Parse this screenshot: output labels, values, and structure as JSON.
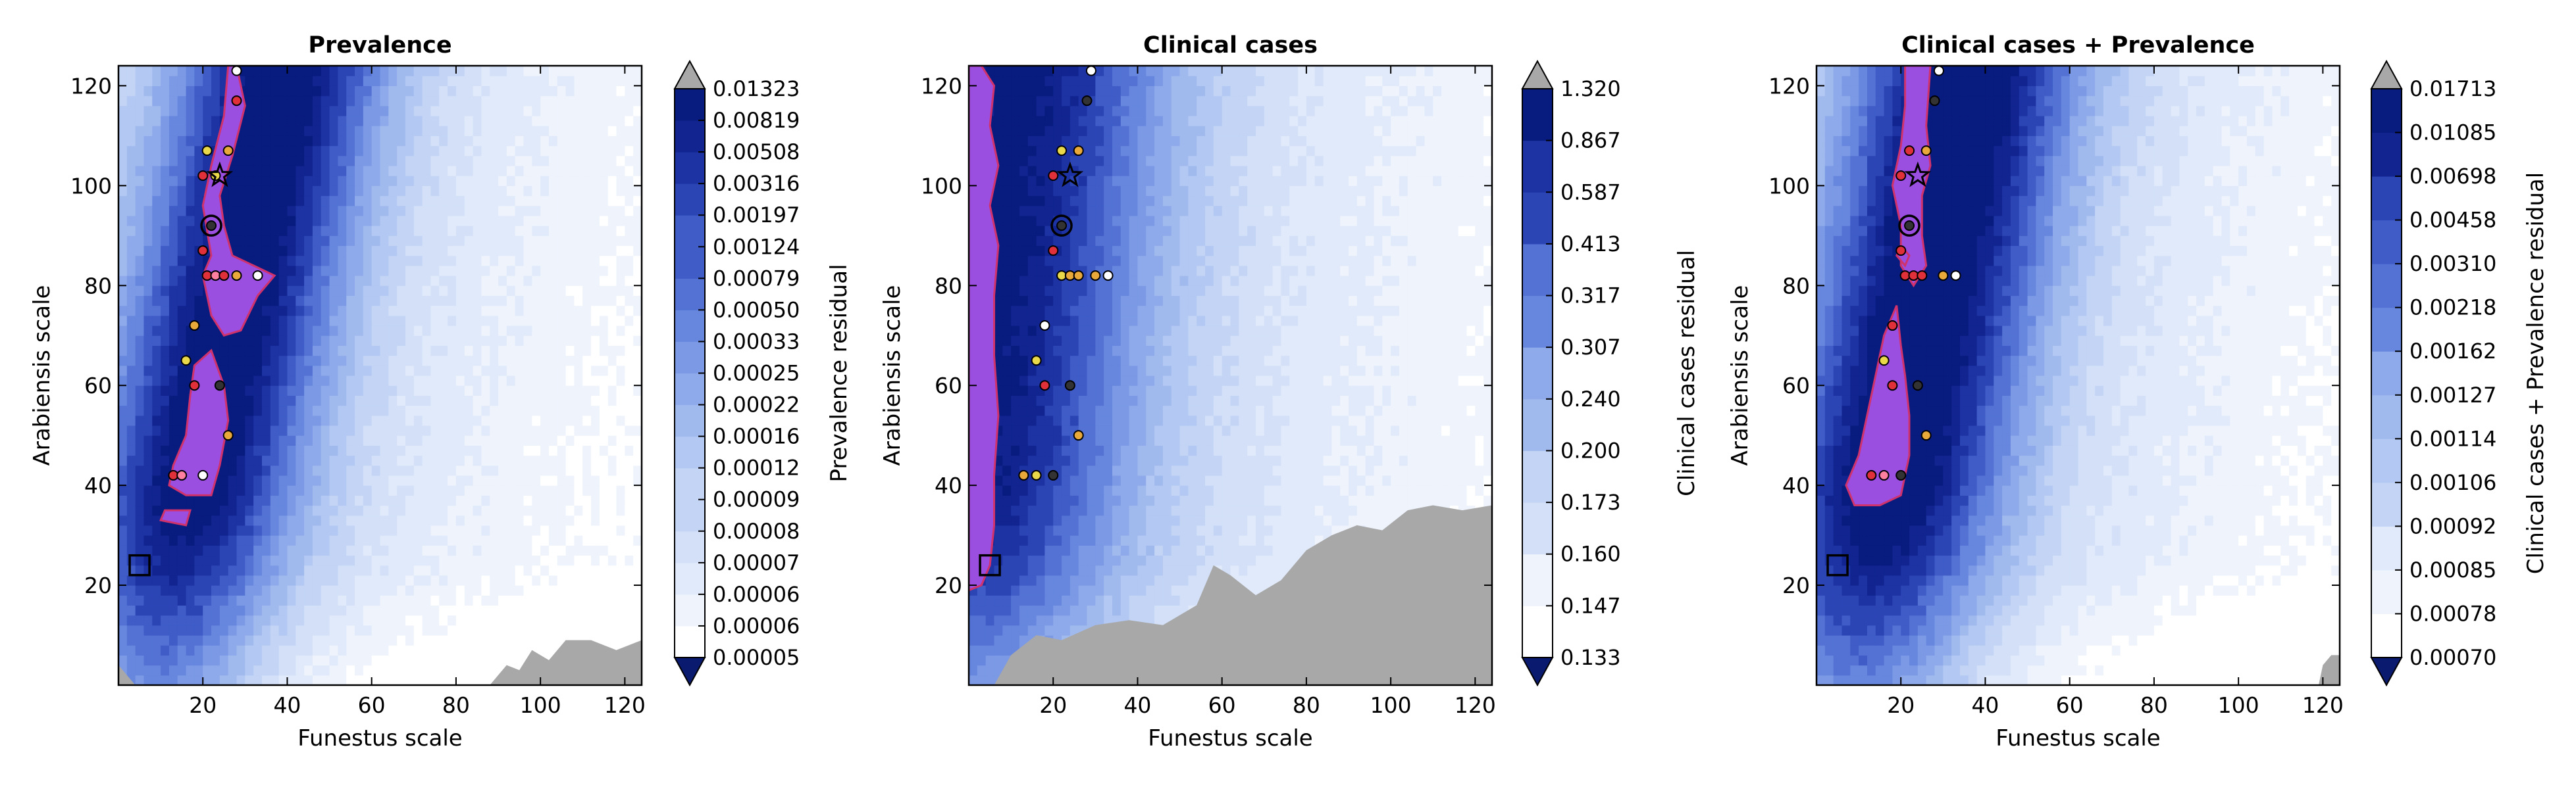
{
  "palette": {
    "level_colors": [
      "#ffffff",
      "#eef3fc",
      "#e1eafa",
      "#d3e0f8",
      "#c3d4f5",
      "#b3c8f2",
      "#a1baee",
      "#8faaea",
      "#7b99e5",
      "#6787de",
      "#5372d4",
      "#3f5cc7",
      "#2c45b5",
      "#1d33a3",
      "#112490",
      "#081b7e"
    ],
    "over_color": "#a8a8a8",
    "under_color": "#0a1a6e",
    "quantile_fill": "#9a4fe0",
    "quantile_edge": "#d0326b",
    "marker_colors": {
      "pink": "#ff7fa0",
      "red": "#e0303a",
      "yellow": "#e8d84a",
      "orange": "#e8a83a",
      "white": "#ffffff",
      "dark": "#333333"
    }
  },
  "chart_data": [
    {
      "type": "filled-contour",
      "title": "Prevalence",
      "xlabel": "Funestus scale",
      "ylabel": "Arabiensis scale",
      "xlim": [
        0,
        124
      ],
      "ylim": [
        0,
        124
      ],
      "xticks": [
        "20",
        "40",
        "60",
        "80",
        "100",
        "120"
      ],
      "yticks": [
        "20",
        "40",
        "60",
        "80",
        "100",
        "120"
      ],
      "colorbar_label": "Prevalence residual",
      "colorbar_ticks": [
        "0.00005",
        "0.00006",
        "0.00006",
        "0.00007",
        "0.00008",
        "0.00009",
        "0.00012",
        "0.00016",
        "0.00022",
        "0.00025",
        "0.00033",
        "0.00050",
        "0.00079",
        "0.00124",
        "0.00197",
        "0.00316",
        "0.00508",
        "0.00819",
        "0.01323"
      ],
      "valley": {
        "x0": 23,
        "slope": 0.25,
        "width": 24,
        "depth": 1.0
      },
      "quantile_region": [
        {
          "x": 28,
          "y": 124
        },
        {
          "x": 30,
          "y": 116
        },
        {
          "x": 27,
          "y": 106
        },
        {
          "x": 24,
          "y": 98
        },
        {
          "x": 25,
          "y": 92
        },
        {
          "x": 27,
          "y": 86
        },
        {
          "x": 32,
          "y": 84
        },
        {
          "x": 37,
          "y": 82
        },
        {
          "x": 33,
          "y": 78
        },
        {
          "x": 29,
          "y": 71
        },
        {
          "x": 25,
          "y": 70
        },
        {
          "x": 22,
          "y": 74
        },
        {
          "x": 20,
          "y": 82
        },
        {
          "x": 22,
          "y": 86
        },
        {
          "x": 20,
          "y": 96
        },
        {
          "x": 22,
          "y": 104
        },
        {
          "x": 25,
          "y": 114
        },
        {
          "x": 26,
          "y": 124
        }
      ],
      "quantile_region_2": [
        {
          "x": 22,
          "y": 67
        },
        {
          "x": 25,
          "y": 60
        },
        {
          "x": 26,
          "y": 53
        },
        {
          "x": 24,
          "y": 44
        },
        {
          "x": 22,
          "y": 38
        },
        {
          "x": 16,
          "y": 38
        },
        {
          "x": 12,
          "y": 40
        },
        {
          "x": 13,
          "y": 44
        },
        {
          "x": 16,
          "y": 50
        },
        {
          "x": 17,
          "y": 58
        },
        {
          "x": 18,
          "y": 64
        }
      ],
      "quantile_region_3": [
        {
          "x": 10,
          "y": 33
        },
        {
          "x": 16,
          "y": 32
        },
        {
          "x": 17,
          "y": 35
        },
        {
          "x": 11,
          "y": 35
        }
      ],
      "gray_region": [
        {
          "x": 88,
          "y": 0
        },
        {
          "x": 92,
          "y": 4
        },
        {
          "x": 95,
          "y": 3
        },
        {
          "x": 98,
          "y": 7
        },
        {
          "x": 102,
          "y": 5
        },
        {
          "x": 106,
          "y": 9
        },
        {
          "x": 112,
          "y": 9
        },
        {
          "x": 118,
          "y": 7
        },
        {
          "x": 124,
          "y": 9
        },
        {
          "x": 124,
          "y": 0
        }
      ],
      "gray_corner": [
        {
          "x": 0,
          "y": 0
        },
        {
          "x": 0,
          "y": 4
        },
        {
          "x": 4,
          "y": 0
        }
      ],
      "markers": [
        {
          "x": 28,
          "y": 123,
          "color": "white"
        },
        {
          "x": 28,
          "y": 117,
          "color": "red"
        },
        {
          "x": 21,
          "y": 107,
          "color": "yellow"
        },
        {
          "x": 26,
          "y": 107,
          "color": "orange"
        },
        {
          "x": 20,
          "y": 102,
          "color": "red"
        },
        {
          "x": 23,
          "y": 102,
          "color": "yellow"
        },
        {
          "x": 20,
          "y": 87,
          "color": "red"
        },
        {
          "x": 21,
          "y": 82,
          "color": "red"
        },
        {
          "x": 23,
          "y": 82,
          "color": "pink"
        },
        {
          "x": 25,
          "y": 82,
          "color": "red"
        },
        {
          "x": 28,
          "y": 82,
          "color": "orange"
        },
        {
          "x": 33,
          "y": 82,
          "color": "white"
        },
        {
          "x": 18,
          "y": 72,
          "color": "orange"
        },
        {
          "x": 16,
          "y": 65,
          "color": "yellow"
        },
        {
          "x": 18,
          "y": 60,
          "color": "red"
        },
        {
          "x": 24,
          "y": 60,
          "color": "dark"
        },
        {
          "x": 26,
          "y": 50,
          "color": "orange"
        },
        {
          "x": 13,
          "y": 42,
          "color": "red"
        },
        {
          "x": 15,
          "y": 42,
          "color": "pink"
        },
        {
          "x": 20,
          "y": 42,
          "color": "white"
        }
      ],
      "star": {
        "x": 24,
        "y": 102
      },
      "circle": {
        "x": 22,
        "y": 92
      },
      "square": {
        "x": 5,
        "y": 24
      }
    },
    {
      "type": "filled-contour",
      "title": "Clinical cases",
      "xlabel": "Funestus scale",
      "ylabel": "Arabiensis scale",
      "xlim": [
        0,
        124
      ],
      "ylim": [
        0,
        124
      ],
      "xticks": [
        "20",
        "40",
        "60",
        "80",
        "100",
        "120"
      ],
      "yticks": [
        "20",
        "40",
        "60",
        "80",
        "100",
        "120"
      ],
      "colorbar_label": "Clinical cases residual",
      "colorbar_ticks": [
        "0.133",
        "0.147",
        "0.160",
        "0.173",
        "0.200",
        "0.240",
        "0.307",
        "0.317",
        "0.413",
        "0.587",
        "0.867",
        "1.320"
      ],
      "valley": {
        "x0": 4,
        "slope": 0.12,
        "width": 34,
        "depth": 0.9
      },
      "quantile_region": [
        {
          "x": 3,
          "y": 124
        },
        {
          "x": 6,
          "y": 120
        },
        {
          "x": 5,
          "y": 112
        },
        {
          "x": 7,
          "y": 104
        },
        {
          "x": 5,
          "y": 96
        },
        {
          "x": 7,
          "y": 88
        },
        {
          "x": 6,
          "y": 78
        },
        {
          "x": 6,
          "y": 66
        },
        {
          "x": 7,
          "y": 54
        },
        {
          "x": 6,
          "y": 42
        },
        {
          "x": 6,
          "y": 32
        },
        {
          "x": 5,
          "y": 24
        },
        {
          "x": 3,
          "y": 20
        },
        {
          "x": 0,
          "y": 19
        },
        {
          "x": 0,
          "y": 124
        }
      ],
      "quantile_region_2": [],
      "quantile_region_3": [],
      "gray_region": [
        {
          "x": 6,
          "y": 0
        },
        {
          "x": 10,
          "y": 6
        },
        {
          "x": 16,
          "y": 10
        },
        {
          "x": 22,
          "y": 9
        },
        {
          "x": 30,
          "y": 12
        },
        {
          "x": 38,
          "y": 13
        },
        {
          "x": 46,
          "y": 12
        },
        {
          "x": 54,
          "y": 16
        },
        {
          "x": 58,
          "y": 24
        },
        {
          "x": 62,
          "y": 22
        },
        {
          "x": 68,
          "y": 18
        },
        {
          "x": 74,
          "y": 21
        },
        {
          "x": 80,
          "y": 27
        },
        {
          "x": 86,
          "y": 30
        },
        {
          "x": 92,
          "y": 32
        },
        {
          "x": 98,
          "y": 31
        },
        {
          "x": 104,
          "y": 35
        },
        {
          "x": 110,
          "y": 36
        },
        {
          "x": 117,
          "y": 35
        },
        {
          "x": 124,
          "y": 36
        },
        {
          "x": 124,
          "y": 0
        }
      ],
      "gray_corner": [],
      "markers": [
        {
          "x": 29,
          "y": 123,
          "color": "white"
        },
        {
          "x": 28,
          "y": 117,
          "color": "dark"
        },
        {
          "x": 22,
          "y": 107,
          "color": "yellow"
        },
        {
          "x": 26,
          "y": 107,
          "color": "orange"
        },
        {
          "x": 20,
          "y": 102,
          "color": "red"
        },
        {
          "x": 20,
          "y": 87,
          "color": "red"
        },
        {
          "x": 22,
          "y": 82,
          "color": "yellow"
        },
        {
          "x": 24,
          "y": 82,
          "color": "orange"
        },
        {
          "x": 26,
          "y": 82,
          "color": "orange"
        },
        {
          "x": 30,
          "y": 82,
          "color": "orange"
        },
        {
          "x": 33,
          "y": 82,
          "color": "white"
        },
        {
          "x": 18,
          "y": 72,
          "color": "white"
        },
        {
          "x": 16,
          "y": 65,
          "color": "yellow"
        },
        {
          "x": 18,
          "y": 60,
          "color": "red"
        },
        {
          "x": 24,
          "y": 60,
          "color": "dark"
        },
        {
          "x": 26,
          "y": 50,
          "color": "orange"
        },
        {
          "x": 13,
          "y": 42,
          "color": "orange"
        },
        {
          "x": 16,
          "y": 42,
          "color": "yellow"
        },
        {
          "x": 20,
          "y": 42,
          "color": "dark"
        }
      ],
      "star": {
        "x": 24,
        "y": 102
      },
      "circle": {
        "x": 22,
        "y": 92
      },
      "square": {
        "x": 5,
        "y": 24
      }
    },
    {
      "type": "filled-contour",
      "title": "Clinical cases + Prevalence",
      "xlabel": "Funestus scale",
      "ylabel": "Arabiensis scale",
      "xlim": [
        0,
        124
      ],
      "ylim": [
        0,
        124
      ],
      "xticks": [
        "20",
        "40",
        "60",
        "80",
        "100",
        "120"
      ],
      "yticks": [
        "20",
        "40",
        "60",
        "80",
        "100",
        "120"
      ],
      "colorbar_label": "Clinical cases + Prevalence residual",
      "colorbar_ticks": [
        "0.00070",
        "0.00078",
        "0.00085",
        "0.00092",
        "0.00106",
        "0.00114",
        "0.00127",
        "0.00162",
        "0.00218",
        "0.00310",
        "0.00458",
        "0.00698",
        "0.01085",
        "0.01713"
      ],
      "valley": {
        "x0": 22,
        "slope": 0.22,
        "width": 26,
        "depth": 1.05
      },
      "quantile_region": [
        {
          "x": 21,
          "y": 124
        },
        {
          "x": 27,
          "y": 124
        },
        {
          "x": 26,
          "y": 112
        },
        {
          "x": 27,
          "y": 104
        },
        {
          "x": 25,
          "y": 98
        },
        {
          "x": 25,
          "y": 90
        },
        {
          "x": 26,
          "y": 84
        },
        {
          "x": 23,
          "y": 80
        },
        {
          "x": 20,
          "y": 84
        },
        {
          "x": 20,
          "y": 92
        },
        {
          "x": 18,
          "y": 100
        },
        {
          "x": 20,
          "y": 108
        },
        {
          "x": 21,
          "y": 116
        }
      ],
      "quantile_region_2": [
        {
          "x": 19,
          "y": 76
        },
        {
          "x": 20,
          "y": 68
        },
        {
          "x": 21,
          "y": 62
        },
        {
          "x": 22,
          "y": 54
        },
        {
          "x": 22,
          "y": 46
        },
        {
          "x": 20,
          "y": 38
        },
        {
          "x": 15,
          "y": 36
        },
        {
          "x": 9,
          "y": 36
        },
        {
          "x": 7,
          "y": 40
        },
        {
          "x": 10,
          "y": 46
        },
        {
          "x": 12,
          "y": 54
        },
        {
          "x": 14,
          "y": 62
        },
        {
          "x": 16,
          "y": 70
        }
      ],
      "quantile_region_3": [
        {
          "x": 20,
          "y": 88
        },
        {
          "x": 22,
          "y": 86
        },
        {
          "x": 21,
          "y": 84
        },
        {
          "x": 19,
          "y": 86
        }
      ],
      "gray_region": [
        {
          "x": 119,
          "y": 0
        },
        {
          "x": 120,
          "y": 4
        },
        {
          "x": 122,
          "y": 6
        },
        {
          "x": 124,
          "y": 6
        },
        {
          "x": 124,
          "y": 0
        }
      ],
      "gray_corner": [],
      "markers": [
        {
          "x": 29,
          "y": 123,
          "color": "white"
        },
        {
          "x": 28,
          "y": 117,
          "color": "dark"
        },
        {
          "x": 22,
          "y": 107,
          "color": "red"
        },
        {
          "x": 26,
          "y": 107,
          "color": "orange"
        },
        {
          "x": 20,
          "y": 102,
          "color": "red"
        },
        {
          "x": 20,
          "y": 87,
          "color": "red"
        },
        {
          "x": 21,
          "y": 82,
          "color": "red"
        },
        {
          "x": 23,
          "y": 82,
          "color": "red"
        },
        {
          "x": 25,
          "y": 82,
          "color": "red"
        },
        {
          "x": 30,
          "y": 82,
          "color": "orange"
        },
        {
          "x": 33,
          "y": 82,
          "color": "white"
        },
        {
          "x": 18,
          "y": 72,
          "color": "red"
        },
        {
          "x": 16,
          "y": 65,
          "color": "yellow"
        },
        {
          "x": 18,
          "y": 60,
          "color": "red"
        },
        {
          "x": 24,
          "y": 60,
          "color": "dark"
        },
        {
          "x": 26,
          "y": 50,
          "color": "orange"
        },
        {
          "x": 13,
          "y": 42,
          "color": "red"
        },
        {
          "x": 16,
          "y": 42,
          "color": "pink"
        },
        {
          "x": 20,
          "y": 42,
          "color": "dark"
        }
      ],
      "star": {
        "x": 24,
        "y": 102
      },
      "circle": {
        "x": 22,
        "y": 92
      },
      "square": {
        "x": 5,
        "y": 24
      }
    }
  ]
}
